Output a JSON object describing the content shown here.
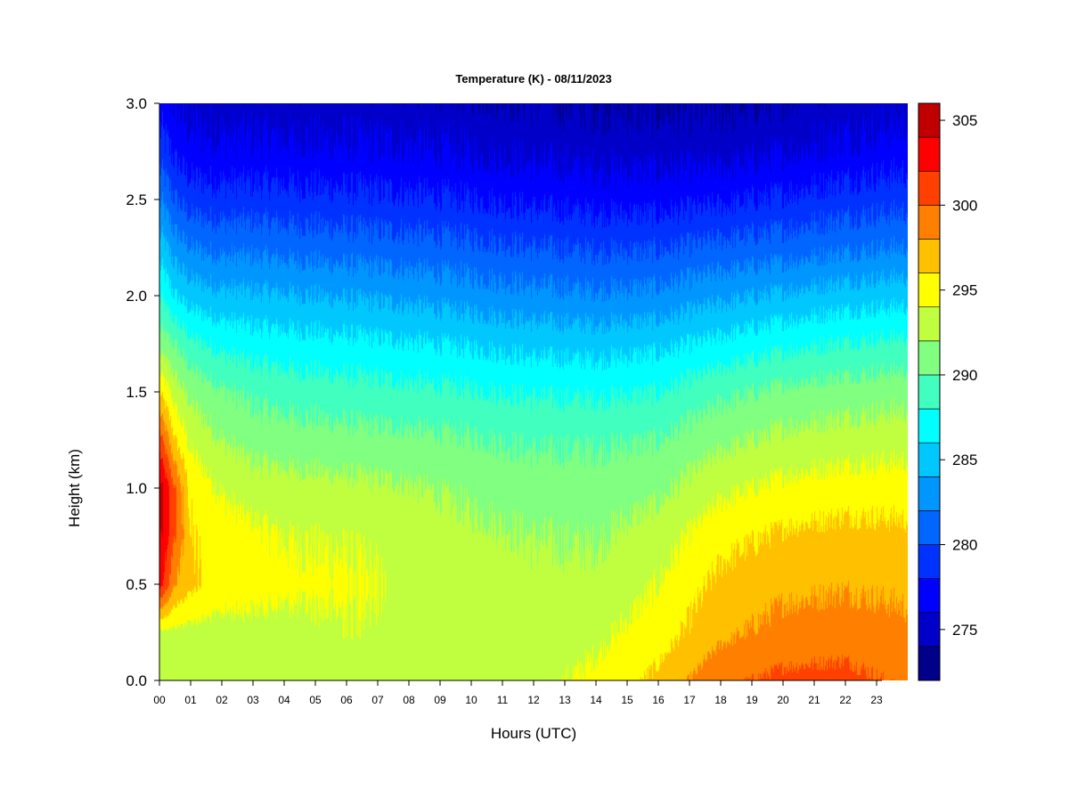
{
  "chart_data": {
    "type": "heatmap",
    "title": "Temperature (K) - 08/11/2023",
    "xlabel": "Hours (UTC)",
    "ylabel": "Height (km)",
    "x_ticks": [
      "00",
      "01",
      "02",
      "03",
      "04",
      "05",
      "06",
      "07",
      "08",
      "09",
      "10",
      "11",
      "12",
      "13",
      "14",
      "15",
      "16",
      "17",
      "18",
      "19",
      "20",
      "21",
      "22",
      "23"
    ],
    "y_ticks": [
      "0.0",
      "0.5",
      "1.0",
      "1.5",
      "2.0",
      "2.5",
      "3.0"
    ],
    "xlim": [
      0,
      24
    ],
    "ylim": [
      0,
      3.0
    ],
    "colorbar": {
      "levels": [
        272,
        274,
        276,
        278,
        280,
        282,
        284,
        286,
        288,
        290,
        292,
        294,
        296,
        298,
        300,
        302,
        304,
        306
      ],
      "colors": [
        "#00008B",
        "#0000C8",
        "#0000FF",
        "#0032FF",
        "#0066FF",
        "#0096FF",
        "#00C8FF",
        "#00FFFF",
        "#40FFBF",
        "#80FF80",
        "#BFFF40",
        "#FFFF00",
        "#FFC000",
        "#FF8000",
        "#FF4000",
        "#FF0000",
        "#C00000",
        "#8B0000"
      ],
      "tick_labels": [
        "275",
        "280",
        "285",
        "290",
        "295",
        "300",
        "305"
      ],
      "tick_values": [
        275,
        280,
        285,
        290,
        295,
        300,
        305
      ]
    },
    "profile_hours": [
      0,
      0.5,
      1,
      2,
      3,
      4,
      6,
      8,
      10,
      12,
      14,
      16,
      18,
      20,
      22,
      24
    ],
    "profile_heights_km": [
      0,
      0.25,
      0.5,
      0.75,
      1.0,
      1.25,
      1.5,
      1.75,
      2.0,
      2.25,
      2.5,
      2.75,
      3.0
    ],
    "temperature_k": [
      [
        293.3,
        293.5,
        303.0,
        304.5,
        305.0,
        301.0,
        296.0,
        291.0,
        288.0,
        285.0,
        282.0,
        279.0,
        277.0
      ],
      [
        293.0,
        293.5,
        298.0,
        300.0,
        300.0,
        296.0,
        293.0,
        290.0,
        286.0,
        283.0,
        280.0,
        277.5,
        276.0
      ],
      [
        293.0,
        293.3,
        296.5,
        296.0,
        295.5,
        293.5,
        291.5,
        288.5,
        285.0,
        282.0,
        279.0,
        276.7,
        275.3
      ],
      [
        293.3,
        293.3,
        295.0,
        295.0,
        293.8,
        292.0,
        290.3,
        287.5,
        284.5,
        281.5,
        278.8,
        276.5,
        275.0
      ],
      [
        293.2,
        293.3,
        294.8,
        294.5,
        293.0,
        291.2,
        289.5,
        287.0,
        284.3,
        281.5,
        278.8,
        276.5,
        275.0
      ],
      [
        293.5,
        293.3,
        294.5,
        294.0,
        292.8,
        291.0,
        289.2,
        286.8,
        284.2,
        281.3,
        278.7,
        276.5,
        274.8
      ],
      [
        293.3,
        293.8,
        294.3,
        293.8,
        292.5,
        290.7,
        288.8,
        286.5,
        283.8,
        281.0,
        278.5,
        276.3,
        274.8
      ],
      [
        293.3,
        293.5,
        293.5,
        293.3,
        292.2,
        290.5,
        288.5,
        286.2,
        283.5,
        280.8,
        278.3,
        276.2,
        274.7
      ],
      [
        293.2,
        293.3,
        293.3,
        292.5,
        291.5,
        290.2,
        288.2,
        285.8,
        283.0,
        280.5,
        278.0,
        275.8,
        274.5
      ],
      [
        293.4,
        292.8,
        292.5,
        292.0,
        291.0,
        289.7,
        287.8,
        285.3,
        282.5,
        280.0,
        277.5,
        275.5,
        274.2
      ],
      [
        294.5,
        293.5,
        292.6,
        291.8,
        291.0,
        289.8,
        287.7,
        285.2,
        282.3,
        279.8,
        277.3,
        275.3,
        274.0
      ],
      [
        296.5,
        295.0,
        294.0,
        293.0,
        291.5,
        290.0,
        288.0,
        285.5,
        282.5,
        279.8,
        277.2,
        275.2,
        273.8
      ],
      [
        299.5,
        297.5,
        296.5,
        295.3,
        293.5,
        291.5,
        289.5,
        286.5,
        283.5,
        280.5,
        277.6,
        275.2,
        273.8
      ],
      [
        300.5,
        298.7,
        297.5,
        296.3,
        294.5,
        292.5,
        290.5,
        287.5,
        284.3,
        281.0,
        278.3,
        275.8,
        274.3
      ],
      [
        300.7,
        299.0,
        297.8,
        296.7,
        295.0,
        293.0,
        291.0,
        288.2,
        285.0,
        281.7,
        279.0,
        276.5,
        275.0
      ],
      [
        299.5,
        298.5,
        297.5,
        296.5,
        295.0,
        293.2,
        291.3,
        288.5,
        285.3,
        282.0,
        279.3,
        277.0,
        275.3
      ]
    ]
  }
}
